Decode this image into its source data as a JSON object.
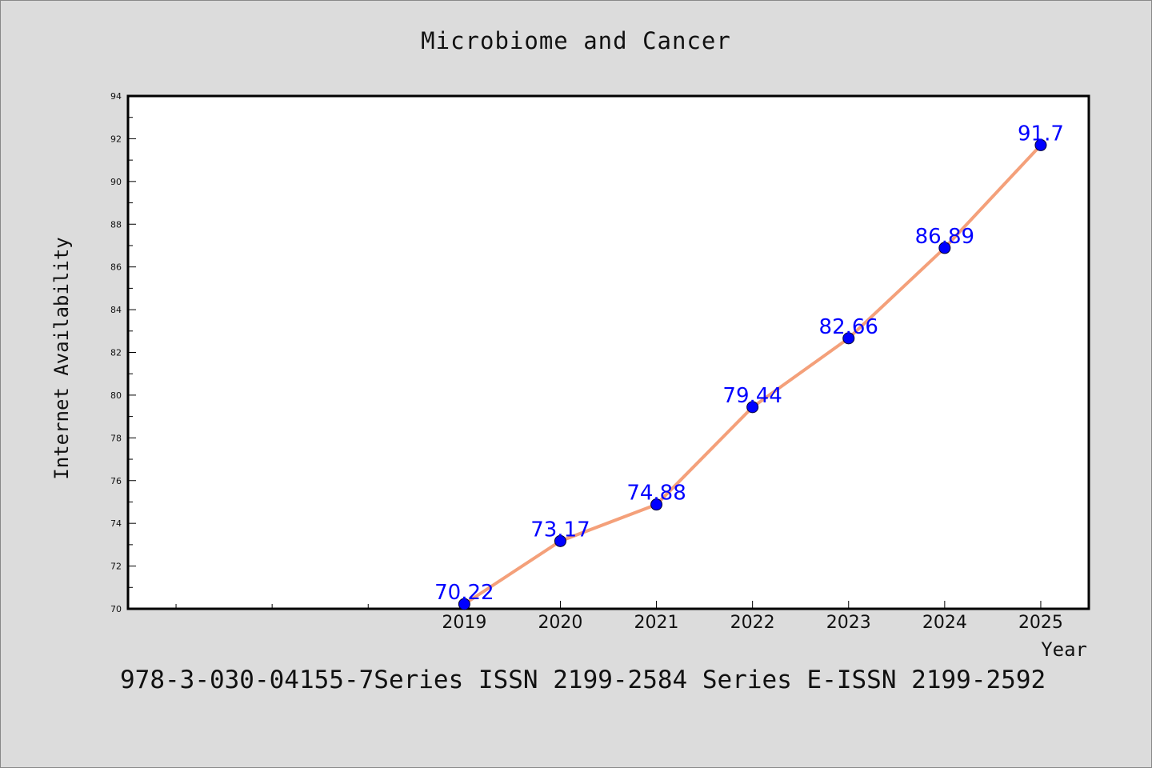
{
  "footer": "978-3-030-04155-7Series ISSN 2199-2584 Series E-ISSN 2199-2592",
  "colors": {
    "background": "#dcdcdc",
    "plot_background": "#ffffff",
    "line": "#f4a07a",
    "marker": "#0000ff",
    "label": "#0000ff"
  },
  "chart_data": {
    "type": "line",
    "title": "Microbiome and Cancer",
    "xlabel": "Year",
    "ylabel": "Internet Availability",
    "x": [
      "2019",
      "2020",
      "2021",
      "2022",
      "2023",
      "2024",
      "2025"
    ],
    "series": [
      {
        "values": [
          70.22,
          73.17,
          74.88,
          79.44,
          82.66,
          86.89,
          91.7
        ],
        "labels": [
          "70.22",
          "73.17",
          "74.88",
          "79.44",
          "82.66",
          "86.89",
          "91.7"
        ]
      }
    ],
    "ylim": [
      70,
      94
    ],
    "yticks": [
      "70",
      "72",
      "74",
      "76",
      "78",
      "80",
      "82",
      "84",
      "86",
      "88",
      "90",
      "92",
      "94"
    ],
    "xlim": [
      2015.5,
      2025.5
    ],
    "grid": false
  }
}
